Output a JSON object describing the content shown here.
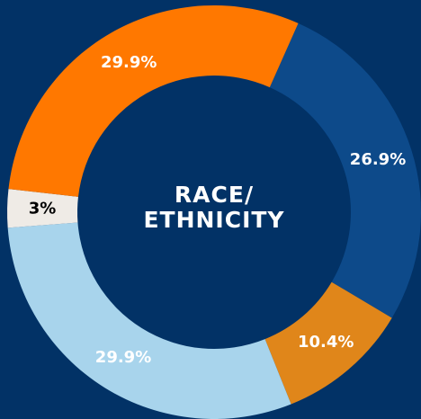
{
  "chart_data": {
    "type": "donut",
    "title": [
      "RACE/",
      "ETHNICITY"
    ],
    "values": [
      26.9,
      10.4,
      29.9,
      3,
      29.9
    ],
    "value_labels": [
      "26.9%",
      "10.4%",
      "29.9%",
      "3%",
      "29.9%"
    ],
    "colors": [
      "#0d4a8a",
      "#e0861a",
      "#a8d4ec",
      "#efebe6",
      "#ff7800"
    ],
    "label_colors": [
      "#ffffff",
      "#ffffff",
      "#ffffff",
      "#000000",
      "#ffffff"
    ]
  }
}
